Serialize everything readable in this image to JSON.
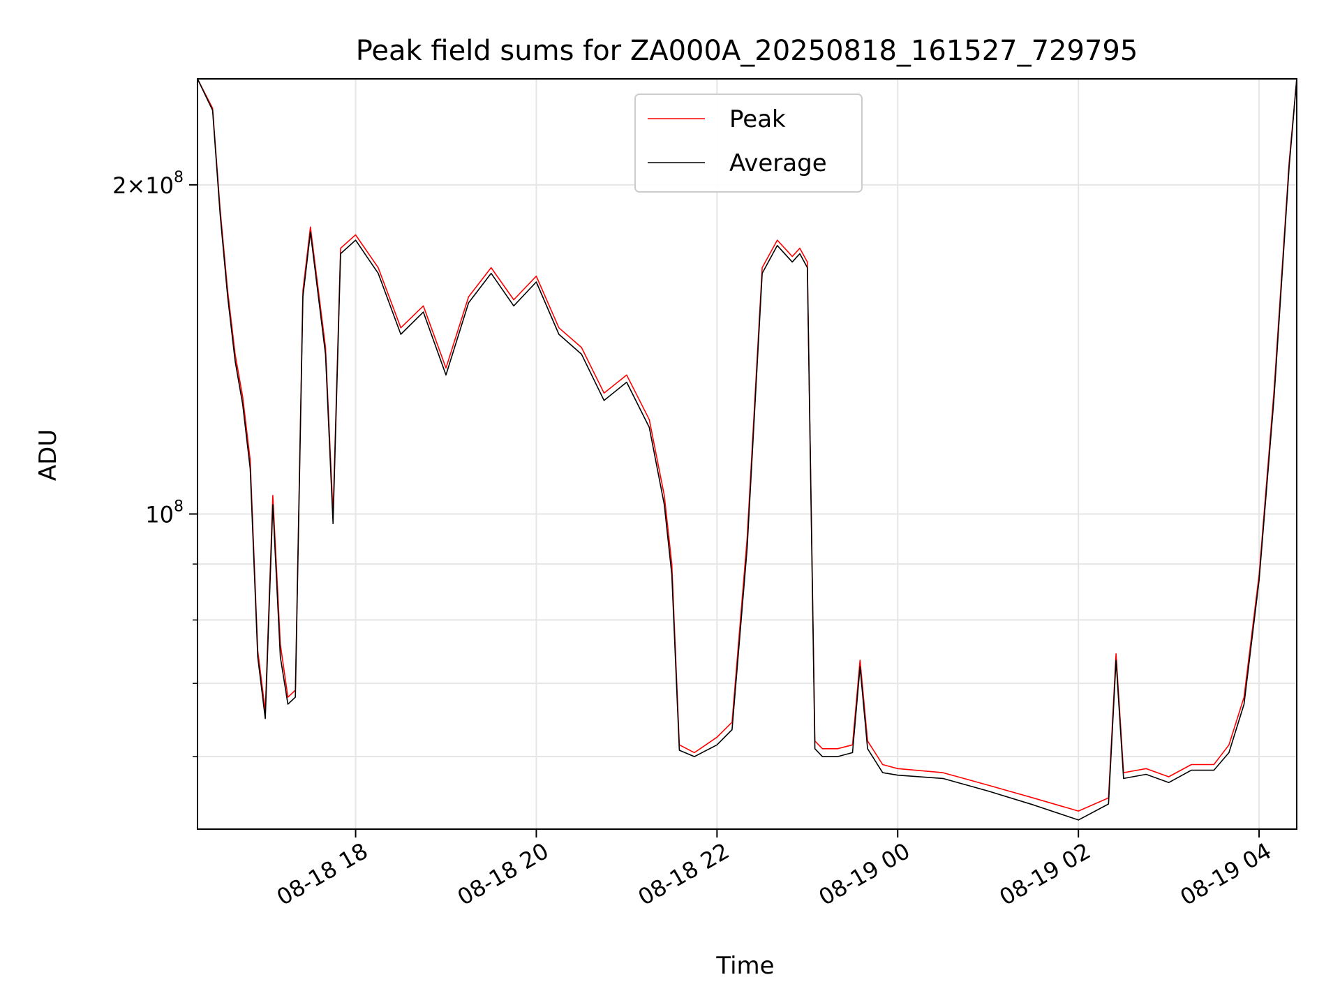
{
  "chart_data": {
    "type": "line",
    "title": "Peak field sums for ZA000A_20250818_161527_729795",
    "xlabel": "Time",
    "ylabel": "ADU",
    "y_scale": "log",
    "ylim": [
      51500000,
      250000000
    ],
    "xlim": [
      "2025-08-18 16:15",
      "2025-08-19 04:25"
    ],
    "x_ticks": [
      {
        "t": "2025-08-18 18:00",
        "label": "08-18 18"
      },
      {
        "t": "2025-08-18 20:00",
        "label": "08-18 20"
      },
      {
        "t": "2025-08-18 22:00",
        "label": "08-18 22"
      },
      {
        "t": "2025-08-19 00:00",
        "label": "08-19 00"
      },
      {
        "t": "2025-08-19 02:00",
        "label": "08-19 02"
      },
      {
        "t": "2025-08-19 04:00",
        "label": "08-19 04"
      }
    ],
    "y_ticks_major": [
      {
        "v": 100000000,
        "base": "10",
        "exp": "8",
        "coef": ""
      },
      {
        "v": 200000000,
        "base": "10",
        "exp": "8",
        "coef": "2"
      }
    ],
    "y_ticks_minor": [
      60000000,
      70000000,
      80000000,
      90000000
    ],
    "grid": true,
    "legend": {
      "position": "top-center",
      "entries": [
        {
          "label": "Peak",
          "color": "#ff0000"
        },
        {
          "label": "Average",
          "color": "#000000"
        }
      ]
    },
    "x": [
      "2025-08-18 16:15",
      "2025-08-18 16:25",
      "2025-08-18 16:30",
      "2025-08-18 16:35",
      "2025-08-18 16:40",
      "2025-08-18 16:45",
      "2025-08-18 16:50",
      "2025-08-18 16:55",
      "2025-08-18 17:00",
      "2025-08-18 17:05",
      "2025-08-18 17:10",
      "2025-08-18 17:15",
      "2025-08-18 17:20",
      "2025-08-18 17:25",
      "2025-08-18 17:30",
      "2025-08-18 17:40",
      "2025-08-18 17:45",
      "2025-08-18 17:50",
      "2025-08-18 18:00",
      "2025-08-18 18:15",
      "2025-08-18 18:30",
      "2025-08-18 18:45",
      "2025-08-18 19:00",
      "2025-08-18 19:15",
      "2025-08-18 19:30",
      "2025-08-18 19:45",
      "2025-08-18 20:00",
      "2025-08-18 20:15",
      "2025-08-18 20:30",
      "2025-08-18 20:45",
      "2025-08-18 21:00",
      "2025-08-18 21:15",
      "2025-08-18 21:25",
      "2025-08-18 21:30",
      "2025-08-18 21:35",
      "2025-08-18 21:45",
      "2025-08-18 22:00",
      "2025-08-18 22:10",
      "2025-08-18 22:20",
      "2025-08-18 22:30",
      "2025-08-18 22:40",
      "2025-08-18 22:50",
      "2025-08-18 22:55",
      "2025-08-18 23:00",
      "2025-08-18 23:05",
      "2025-08-18 23:10",
      "2025-08-18 23:20",
      "2025-08-18 23:30",
      "2025-08-18 23:35",
      "2025-08-18 23:40",
      "2025-08-18 23:50",
      "2025-08-19 00:00",
      "2025-08-19 00:30",
      "2025-08-19 01:00",
      "2025-08-19 01:30",
      "2025-08-19 02:00",
      "2025-08-19 02:20",
      "2025-08-19 02:25",
      "2025-08-19 02:30",
      "2025-08-19 02:45",
      "2025-08-19 03:00",
      "2025-08-19 03:15",
      "2025-08-19 03:30",
      "2025-08-19 03:40",
      "2025-08-19 03:50",
      "2025-08-19 04:00",
      "2025-08-19 04:10",
      "2025-08-19 04:20",
      "2025-08-19 04:25"
    ],
    "series": [
      {
        "name": "Peak",
        "color": "#ff0000",
        "values": [
          250000000,
          235000000,
          190000000,
          160000000,
          140000000,
          128000000,
          112000000,
          75000000,
          66000000,
          104000000,
          76000000,
          68000000,
          69000000,
          160000000,
          183000000,
          142000000,
          100000000,
          175000000,
          180000000,
          168000000,
          148000000,
          155000000,
          136000000,
          158000000,
          168000000,
          157000000,
          165000000,
          148000000,
          142000000,
          129000000,
          134000000,
          122000000,
          104000000,
          90000000,
          61500000,
          60500000,
          62500000,
          64500000,
          95000000,
          168000000,
          178000000,
          172000000,
          175000000,
          170000000,
          62000000,
          61000000,
          61000000,
          61500000,
          73500000,
          62000000,
          59000000,
          58500000,
          58000000,
          56500000,
          55000000,
          53500000,
          55000000,
          74500000,
          58000000,
          58500000,
          57500000,
          59000000,
          59000000,
          61500000,
          68000000,
          88000000,
          130000000,
          210000000,
          250000000
        ]
      },
      {
        "name": "Average",
        "color": "#000000",
        "values": [
          250000000,
          234000000,
          188000000,
          158000000,
          138000000,
          126000000,
          110000000,
          74000000,
          65000000,
          102000000,
          74000000,
          67000000,
          68000000,
          158000000,
          181000000,
          140000000,
          98000000,
          173000000,
          178000000,
          166000000,
          146000000,
          153000000,
          134000000,
          156000000,
          166000000,
          155000000,
          163000000,
          146000000,
          140000000,
          127000000,
          132000000,
          120000000,
          102000000,
          88000000,
          60800000,
          60000000,
          61500000,
          63500000,
          93000000,
          166000000,
          176000000,
          170000000,
          173000000,
          168000000,
          61000000,
          60000000,
          60000000,
          60500000,
          72500000,
          61000000,
          58000000,
          57700000,
          57300000,
          55800000,
          54200000,
          52500000,
          54300000,
          73500000,
          57300000,
          57800000,
          56800000,
          58300000,
          58300000,
          60500000,
          67000000,
          87000000,
          128000000,
          208000000,
          250000000
        ]
      }
    ]
  }
}
